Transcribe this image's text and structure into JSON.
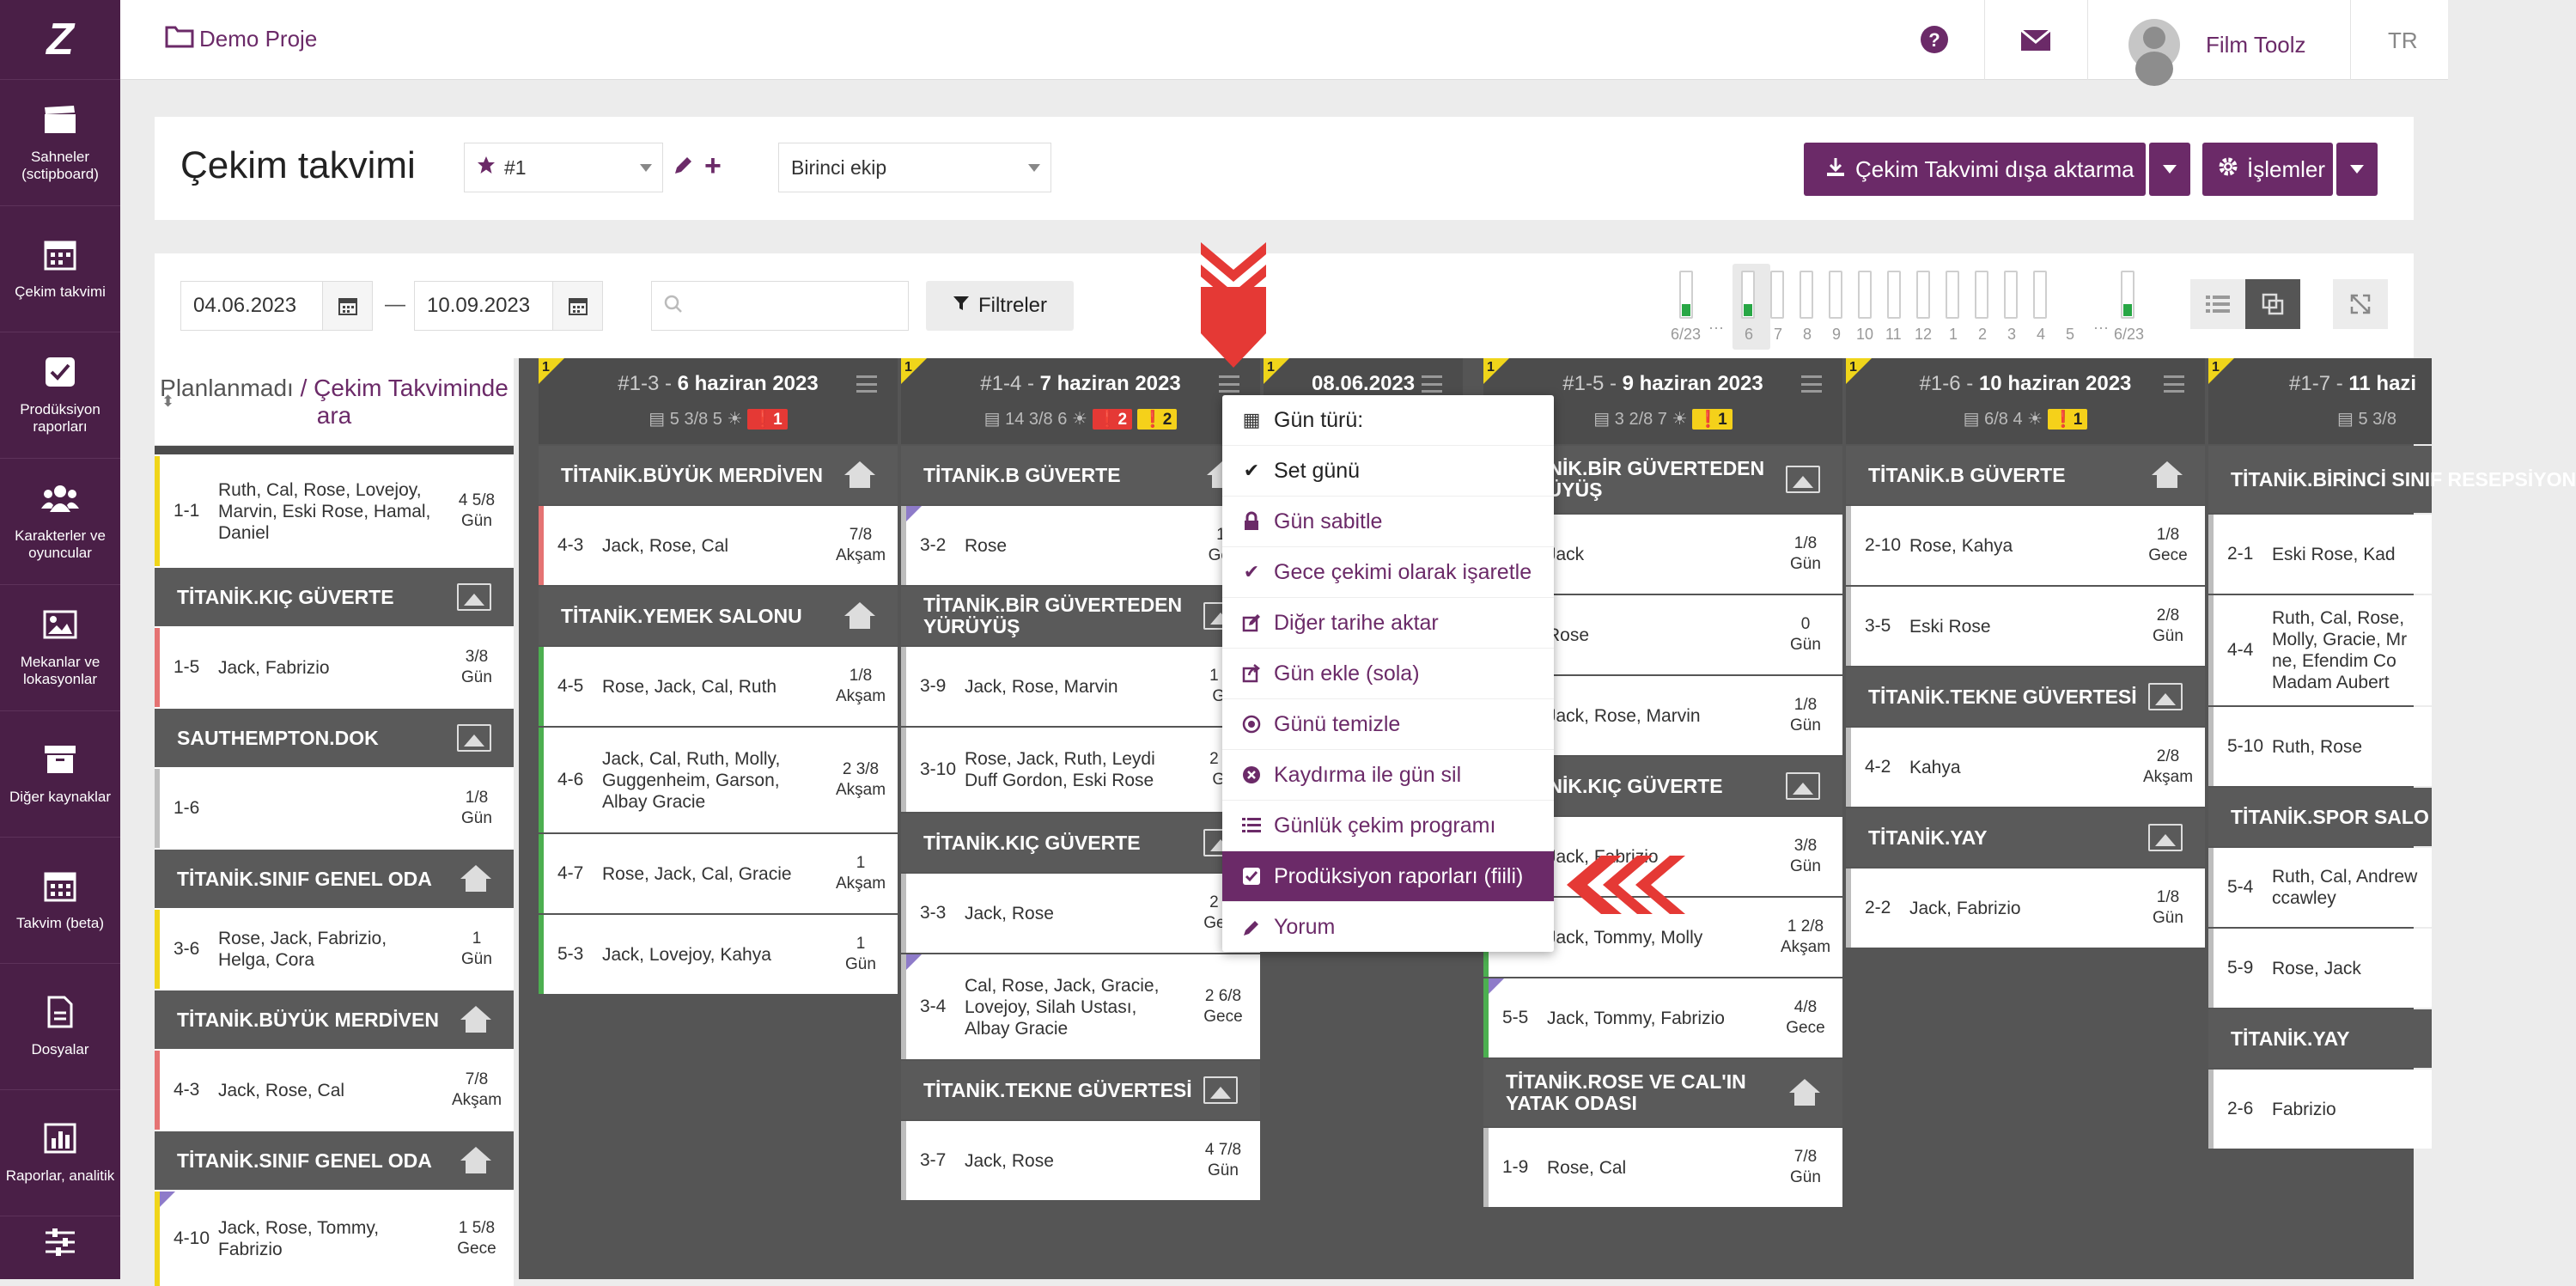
{
  "nav": {
    "logo": "Z",
    "items": [
      {
        "label": "Sahneler (sctipboard)",
        "icon": "clapperboard-icon"
      },
      {
        "label": "Çekim takvimi",
        "icon": "calendar-icon"
      },
      {
        "label": "Prodüksiyon raporları",
        "icon": "checkbox-icon"
      },
      {
        "label": "Karakterler ve oyuncular",
        "icon": "users-icon"
      },
      {
        "label": "Mekanlar ve lokasyonlar",
        "icon": "image-icon"
      },
      {
        "label": "Diğer kaynaklar",
        "icon": "archive-icon"
      },
      {
        "label": "Takvim (beta)",
        "icon": "calendar-grid-icon"
      },
      {
        "label": "Dosyalar",
        "icon": "file-icon"
      },
      {
        "label": "Raporlar, analitik",
        "icon": "chart-icon"
      },
      {
        "label": "",
        "icon": "sliders-icon"
      }
    ]
  },
  "topbar": {
    "project": "Demo Proje",
    "user": "Film Toolz",
    "lang": "TR"
  },
  "header": {
    "title": "Çekim takvimi",
    "schedule_select": "#1",
    "crew_select": "Birinci ekip",
    "export_label": "Çekim Takvimi dışa aktarma",
    "actions_label": "İşlemler"
  },
  "toolbar": {
    "date_from": "04.06.2023",
    "date_sep": "—",
    "date_to": "10.09.2023",
    "search_placeholder": "",
    "filters_label": "Filtreler"
  },
  "mini_timeline": {
    "labels": [
      "6/23",
      "···",
      "6",
      "7",
      "8",
      "9",
      "10",
      "11",
      "12",
      "1",
      "2",
      "3",
      "4",
      "5",
      "···",
      "6/23"
    ]
  },
  "unplanned": {
    "title_a": "Planlanmadı",
    "title_sep": "/",
    "title_b": "Çekim Takviminde ara",
    "blocks": [
      {
        "scene": "1-1",
        "chars": "Ruth, Cal, Rose, Lovejoy, Marvin, Eski Rose, Hamal, Daniel",
        "pages": "4 5/8",
        "time": "Gün"
      },
      {
        "loc": "TİTANİK.KIÇ GÜVERTE"
      },
      {
        "scene": "1-5",
        "chars": "Jack, Fabrizio",
        "pages": "3/8",
        "time": "Gün"
      },
      {
        "loc": "SAUTHEMPTON.DOK"
      },
      {
        "scene": "1-6",
        "chars": "",
        "pages": "1/8",
        "time": "Gün"
      },
      {
        "loc": "TİTANİK.SINIF GENEL ODA"
      },
      {
        "scene": "3-6",
        "chars": "Rose, Jack, Fabrizio, Helga, Cora",
        "pages": "1",
        "time": "Gün"
      },
      {
        "loc": "TİTANİK.BÜYÜK MERDİVEN"
      },
      {
        "scene": "4-3",
        "chars": "Jack, Rose, Cal",
        "pages": "7/8",
        "time": "Akşam"
      },
      {
        "loc": "TİTANİK.SINIF GENEL ODA"
      },
      {
        "scene": "4-10",
        "chars": "Jack, Rose, Tommy, Fabrizio",
        "pages": "1 5/8",
        "time": "Gece"
      }
    ]
  },
  "days": [
    {
      "num": "1",
      "code": "#1-3",
      "date": "6 haziran 2023",
      "stats": "5 3/8  5",
      "red": "1",
      "yellow": "",
      "blocks": [
        {
          "loc": "TİTANİK.BÜYÜK MERDİVEN",
          "icon": "house"
        },
        {
          "scene": "4-3",
          "chars": "Jack, Rose, Cal",
          "pages": "7/8",
          "time": "Akşam"
        },
        {
          "loc": "TİTANİK.YEMEK SALONU",
          "icon": "house"
        },
        {
          "scene": "4-5",
          "chars": "Rose, Jack, Cal, Ruth",
          "pages": "1/8",
          "time": "Akşam"
        },
        {
          "scene": "4-6",
          "chars": "Jack, Cal, Ruth, Molly, Guggenheim, Garson, Albay Gracie",
          "pages": "2 3/8",
          "time": "Akşam"
        },
        {
          "scene": "4-7",
          "chars": "Rose, Jack, Cal, Gracie",
          "pages": "1",
          "time": "Akşam"
        },
        {
          "scene": "5-3",
          "chars": "Jack, Lovejoy, Kahya",
          "pages": "1",
          "time": "Gün"
        }
      ]
    },
    {
      "num": "1",
      "code": "#1-4",
      "date": "7 haziran 2023",
      "stats": "14 3/8  6",
      "red": "2",
      "yellow": "2",
      "blocks": [
        {
          "loc": "TİTANİK.B GÜVERTE",
          "icon": "house"
        },
        {
          "scene": "3-2",
          "chars": "Rose",
          "pages": "1/",
          "time": "Gec"
        },
        {
          "loc": "TİTANİK.BİR GÜVERTEDEN YÜRÜYÜŞ",
          "icon": "image"
        },
        {
          "scene": "3-9",
          "chars": "Jack, Rose, Marvin",
          "pages": "1 2/",
          "time": "Gü"
        },
        {
          "scene": "3-10",
          "chars": "Rose, Jack, Ruth, Leydi Duff Gordon, Eski Rose",
          "pages": "2 4/",
          "time": "Gü"
        },
        {
          "loc": "TİTANİK.KIÇ GÜVERTE",
          "icon": "image"
        },
        {
          "scene": "3-3",
          "chars": "Jack, Rose",
          "pages": "2 7/",
          "time": "Gece"
        },
        {
          "scene": "3-4",
          "chars": "Cal, Rose, Jack, Gracie, Lovejoy, Silah Ustası, Albay Gracie",
          "pages": "2 6/8",
          "time": "Gece"
        },
        {
          "loc": "TİTANİK.TEKNE GÜVERTESİ",
          "icon": "image"
        },
        {
          "scene": "3-7",
          "chars": "Jack, Rose",
          "pages": "4 7/8",
          "time": "Gün"
        }
      ]
    },
    {
      "num": "1",
      "code": "",
      "date": "08.06.2023",
      "stats": "",
      "red": "",
      "yellow": "",
      "blocks": []
    },
    {
      "num": "1",
      "code": "#1-5",
      "date": "9 haziran 2023",
      "stats": "3 2/8  7",
      "red": "",
      "yellow": "1",
      "blocks": [
        {
          "loc": "TİTANİK.BİR GÜVERTEDEN YÜRÜYÜŞ",
          "icon": "image"
        },
        {
          "scene": "",
          "chars": "Jack",
          "pages": "1/8",
          "time": "Gün"
        },
        {
          "scene": "",
          "chars": "Rose",
          "pages": "0",
          "time": "Gün"
        },
        {
          "scene": "",
          "chars": "Jack, Rose, Marvin",
          "pages": "1/8",
          "time": "Gün"
        },
        {
          "loc": "TİTANİK.KIÇ GÜVERTE",
          "icon": "image"
        },
        {
          "scene": "",
          "chars": "Jack, Fabrizio",
          "pages": "3/8",
          "time": "Gün"
        },
        {
          "scene": "",
          "chars": "Jack, Tommy, Molly",
          "pages": "1 2/8",
          "time": "Akşam"
        },
        {
          "scene": "5-5",
          "chars": "Jack, Tommy, Fabrizio",
          "pages": "4/8",
          "time": "Gece"
        },
        {
          "loc": "TİTANİK.ROSE VE CAL'IN YATAK ODASI",
          "icon": "house"
        },
        {
          "scene": "1-9",
          "chars": "Rose, Cal",
          "pages": "7/8",
          "time": "Gün"
        }
      ]
    },
    {
      "num": "1",
      "code": "#1-6",
      "date": "10 haziran 2023",
      "stats": "6/8  4",
      "red": "",
      "yellow": "1",
      "blocks": [
        {
          "loc": "TİTANİK.B GÜVERTE",
          "icon": "house"
        },
        {
          "scene": "2-10",
          "chars": "Rose, Kahya",
          "pages": "1/8",
          "time": "Gece"
        },
        {
          "scene": "3-5",
          "chars": "Eski Rose",
          "pages": "2/8",
          "time": "Gün"
        },
        {
          "loc": "TİTANİK.TEKNE GÜVERTESİ",
          "icon": "image"
        },
        {
          "scene": "4-2",
          "chars": "Kahya",
          "pages": "2/8",
          "time": "Akşam"
        },
        {
          "loc": "TİTANİK.YAY",
          "icon": "image"
        },
        {
          "scene": "2-2",
          "chars": "Jack, Fabrizio",
          "pages": "1/8",
          "time": "Gün"
        }
      ]
    },
    {
      "num": "1",
      "code": "#1-7",
      "date": "11 hazi",
      "stats": "5 3/8",
      "red": "",
      "yellow": "",
      "blocks": [
        {
          "loc": "TİTANİK.BİRİNCİ SINIF RESEPSİYON",
          "icon": ""
        },
        {
          "scene": "2-1",
          "chars": "Eski Rose, Kad",
          "pages": "",
          "time": ""
        },
        {
          "scene": "4-4",
          "chars": "Ruth, Cal, Rose, Molly, Gracie, Mr ne, Efendim Co Madam Aubert",
          "pages": "",
          "time": ""
        },
        {
          "scene": "5-10",
          "chars": "Ruth, Rose",
          "pages": "",
          "time": ""
        },
        {
          "loc": "TİTANİK.SPOR SALO",
          "icon": ""
        },
        {
          "scene": "5-4",
          "chars": "Ruth, Cal, Andrew ccawley",
          "pages": "",
          "time": ""
        },
        {
          "scene": "5-9",
          "chars": "Rose, Jack",
          "pages": "",
          "time": ""
        },
        {
          "loc": "TİTANİK.YAY",
          "icon": ""
        },
        {
          "scene": "2-6",
          "chars": "Fabrizio",
          "pages": "",
          "time": ""
        }
      ]
    }
  ],
  "context_menu": {
    "items": [
      {
        "label": "Gün türü:",
        "icon": "calendar-icon"
      },
      {
        "label": "Set günü",
        "icon": "check-icon"
      },
      {
        "label": "Gün sabitle",
        "icon": "lock-icon"
      },
      {
        "label": "Gece çekimi olarak işaretle",
        "icon": "check-icon"
      },
      {
        "label": "Diğer tarihe aktar",
        "icon": "edit-icon"
      },
      {
        "label": "Gün ekle (sola)",
        "icon": "share-icon"
      },
      {
        "label": "Günü temizle",
        "icon": "circle-dot-icon"
      },
      {
        "label": "Kaydırma ile gün sil",
        "icon": "times-circle-icon"
      },
      {
        "label": "Günlük çekim programı",
        "icon": "list-icon"
      },
      {
        "label": "Prodüksiyon raporları (fiili)",
        "icon": "checkbox-icon"
      },
      {
        "label": "Yorum",
        "icon": "pencil-icon"
      }
    ]
  },
  "colors": {
    "brand": "#6b2a68",
    "accent_red": "#e53935",
    "warn_yellow": "#f5d11a",
    "ok_green": "#28a745"
  }
}
